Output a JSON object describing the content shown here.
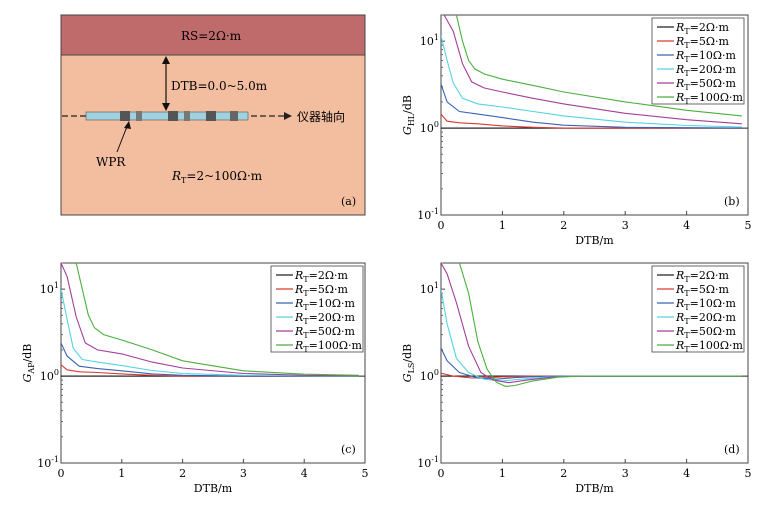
{
  "diagram": {
    "top_layer_label": "RS=2Ω·m",
    "dtb_label": "DTB=0.0~5.0m",
    "axis_label": "仪器轴向",
    "tool_label": "WPR",
    "rt_label_prefix": "R",
    "rt_label_sub": "T",
    "rt_label_suffix": "=2~100Ω·m",
    "panel_tag": "(a)",
    "colors": {
      "top_layer": "#c06b6b",
      "bottom_layer": "#f3bea0"
    }
  },
  "chart_data": [
    {
      "id": "b",
      "panel_tag": "(b)",
      "type": "line",
      "yscale": "log",
      "xlabel": "DTB/m",
      "ylabel_main": "G",
      "ylabel_sub": "HL",
      "ylabel_suffix": "/dB",
      "xlim": [
        0,
        5
      ],
      "ylim": [
        0.1,
        20
      ],
      "xticks": [
        "0",
        "1",
        "2",
        "3",
        "4",
        "5"
      ],
      "yticks": [
        {
          "v": 10,
          "base": "10",
          "exp": "1"
        },
        {
          "v": 1,
          "base": "10",
          "exp": "0"
        },
        {
          "v": 0.1,
          "base": "10",
          "exp": "-1"
        }
      ],
      "legend_position": "top-right",
      "series": [
        {
          "name": "2Ω·m",
          "color": "#222222",
          "x": [
            0,
            1,
            2,
            3,
            4,
            4.9
          ],
          "y": [
            1,
            1,
            1,
            1,
            1,
            1
          ]
        },
        {
          "name": "5Ω·m",
          "color": "#d93a32",
          "x": [
            0,
            0.1,
            0.3,
            0.6,
            1.0,
            1.5,
            2.0,
            3.0,
            4.9
          ],
          "y": [
            1.45,
            1.2,
            1.15,
            1.12,
            1.06,
            1.02,
            1.0,
            1.0,
            1.0
          ]
        },
        {
          "name": "10Ω·m",
          "color": "#3b63b3",
          "x": [
            0,
            0.1,
            0.3,
            0.6,
            1.0,
            1.5,
            2.0,
            3.0,
            4.0,
            4.9
          ],
          "y": [
            3.2,
            2.0,
            1.55,
            1.45,
            1.32,
            1.17,
            1.08,
            1.02,
            1.01,
            1.0
          ]
        },
        {
          "name": "20Ω·m",
          "color": "#55d3df",
          "x": [
            0,
            0.1,
            0.2,
            0.35,
            0.6,
            1.0,
            1.5,
            2.0,
            3.0,
            4.0,
            4.9
          ],
          "y": [
            11.5,
            6.0,
            3.3,
            2.2,
            1.9,
            1.75,
            1.55,
            1.38,
            1.17,
            1.07,
            1.03
          ]
        },
        {
          "name": "50Ω·m",
          "color": "#a43d9b",
          "x": [
            0.05,
            0.2,
            0.35,
            0.5,
            0.7,
            1.0,
            1.5,
            2.0,
            3.0,
            4.0,
            4.9
          ],
          "y": [
            20,
            13,
            5.5,
            3.4,
            2.9,
            2.6,
            2.2,
            1.9,
            1.48,
            1.25,
            1.12
          ]
        },
        {
          "name": "100Ω·m",
          "color": "#4cae3f",
          "x": [
            0.25,
            0.35,
            0.45,
            0.55,
            0.7,
            1.0,
            1.5,
            2.0,
            3.0,
            4.0,
            4.9
          ],
          "y": [
            20,
            10,
            6.0,
            4.8,
            4.2,
            3.65,
            3.1,
            2.6,
            2.0,
            1.6,
            1.38
          ]
        }
      ]
    },
    {
      "id": "c",
      "panel_tag": "(c)",
      "type": "line",
      "yscale": "log",
      "xlabel": "DTB/m",
      "ylabel_main": "G",
      "ylabel_sub": "AP",
      "ylabel_suffix": "/dB",
      "xlim": [
        0,
        5
      ],
      "ylim": [
        0.1,
        20
      ],
      "xticks": [
        "0",
        "1",
        "2",
        "3",
        "4",
        "5"
      ],
      "yticks": [
        {
          "v": 10,
          "base": "10",
          "exp": "1"
        },
        {
          "v": 1,
          "base": "10",
          "exp": "0"
        },
        {
          "v": 0.1,
          "base": "10",
          "exp": "-1"
        }
      ],
      "legend_position": "top-right",
      "series": [
        {
          "name": "2Ω·m",
          "color": "#222222",
          "x": [
            0,
            1,
            2,
            3,
            4,
            4.9
          ],
          "y": [
            1,
            1,
            1,
            1,
            1,
            1
          ]
        },
        {
          "name": "5Ω·m",
          "color": "#d93a32",
          "x": [
            0,
            0.1,
            0.3,
            0.6,
            1.0,
            1.5,
            2.0,
            3.0,
            4.9
          ],
          "y": [
            1.35,
            1.18,
            1.12,
            1.1,
            1.06,
            1.02,
            1.0,
            1.0,
            1.0
          ]
        },
        {
          "name": "10Ω·m",
          "color": "#3b63b3",
          "x": [
            0,
            0.1,
            0.3,
            0.6,
            1.0,
            1.5,
            2.0,
            3.0,
            4.9
          ],
          "y": [
            2.4,
            1.7,
            1.3,
            1.22,
            1.15,
            1.06,
            1.02,
            1.0,
            1.0
          ]
        },
        {
          "name": "20Ω·m",
          "color": "#55d3df",
          "x": [
            0,
            0.1,
            0.2,
            0.35,
            0.6,
            1.0,
            1.5,
            2.0,
            3.0,
            4.0,
            4.9
          ],
          "y": [
            10,
            4.5,
            2.1,
            1.55,
            1.45,
            1.32,
            1.16,
            1.07,
            1.02,
            1.01,
            1.0
          ]
        },
        {
          "name": "50Ω·m",
          "color": "#a43d9b",
          "x": [
            0,
            0.1,
            0.25,
            0.4,
            0.6,
            1.0,
            1.5,
            2.0,
            3.0,
            4.0,
            4.9
          ],
          "y": [
            20,
            14,
            4.8,
            2.4,
            2.0,
            1.8,
            1.45,
            1.24,
            1.07,
            1.02,
            1.01
          ]
        },
        {
          "name": "100Ω·m",
          "color": "#4cae3f",
          "x": [
            0.25,
            0.35,
            0.45,
            0.55,
            0.7,
            1.0,
            1.5,
            2.0,
            3.0,
            4.0,
            4.9
          ],
          "y": [
            20,
            10,
            5.0,
            3.6,
            3.0,
            2.6,
            2.0,
            1.5,
            1.15,
            1.05,
            1.02
          ]
        }
      ]
    },
    {
      "id": "d",
      "panel_tag": "(d)",
      "type": "line",
      "yscale": "log",
      "xlabel": "DTB/m",
      "ylabel_main": "G",
      "ylabel_sub": "LS",
      "ylabel_suffix": "/dB",
      "xlim": [
        0,
        5
      ],
      "ylim": [
        0.1,
        20
      ],
      "xticks": [
        "0",
        "1",
        "2",
        "3",
        "4",
        "5"
      ],
      "yticks": [
        {
          "v": 10,
          "base": "10",
          "exp": "1"
        },
        {
          "v": 1,
          "base": "10",
          "exp": "0"
        },
        {
          "v": 0.1,
          "base": "10",
          "exp": "-1"
        }
      ],
      "legend_position": "top-right",
      "series": [
        {
          "name": "2Ω·m",
          "color": "#222222",
          "x": [
            0,
            1,
            2,
            3,
            4,
            4.9
          ],
          "y": [
            1,
            1,
            1,
            1,
            1,
            1
          ]
        },
        {
          "name": "5Ω·m",
          "color": "#d93a32",
          "x": [
            0,
            0.2,
            0.5,
            0.8,
            1.0,
            1.5,
            2.0,
            3.0,
            4.9
          ],
          "y": [
            1.08,
            1.0,
            0.95,
            0.96,
            0.98,
            1.0,
            1.0,
            1.0,
            1.0
          ]
        },
        {
          "name": "10Ω·m",
          "color": "#3b63b3",
          "x": [
            0,
            0.1,
            0.3,
            0.6,
            0.9,
            1.2,
            1.6,
            2.0,
            3.0,
            4.9
          ],
          "y": [
            2.1,
            1.5,
            1.1,
            0.95,
            0.92,
            0.96,
            0.99,
            1.0,
            1.0,
            1.0
          ]
        },
        {
          "name": "20Ω·m",
          "color": "#55d3df",
          "x": [
            0,
            0.1,
            0.25,
            0.45,
            0.7,
            1.0,
            1.3,
            1.7,
            2.2,
            3.0,
            4.9
          ],
          "y": [
            10,
            4.0,
            1.6,
            1.1,
            0.92,
            0.88,
            0.92,
            0.97,
            1.0,
            1.0,
            1.0
          ]
        },
        {
          "name": "50Ω·m",
          "color": "#a43d9b",
          "x": [
            0,
            0.1,
            0.25,
            0.45,
            0.65,
            0.85,
            1.1,
            1.4,
            1.8,
            2.2,
            3.0,
            4.9
          ],
          "y": [
            20,
            15,
            7.0,
            2.2,
            1.1,
            0.9,
            0.84,
            0.9,
            0.97,
            1.0,
            1.0,
            1.0
          ]
        },
        {
          "name": "100Ω·m",
          "color": "#4cae3f",
          "x": [
            0.3,
            0.45,
            0.6,
            0.75,
            0.9,
            1.05,
            1.2,
            1.5,
            1.9,
            2.3,
            3.0,
            4.9
          ],
          "y": [
            20,
            9.0,
            2.5,
            1.2,
            0.85,
            0.76,
            0.78,
            0.88,
            0.97,
            1.0,
            1.0,
            1.0
          ]
        }
      ]
    }
  ]
}
